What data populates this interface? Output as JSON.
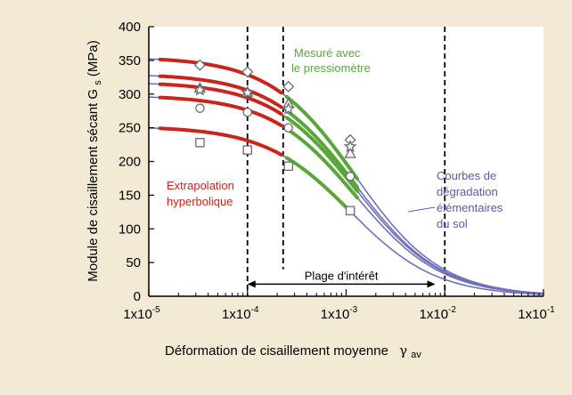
{
  "chart_data": {
    "type": "line",
    "x_scale": "log",
    "xlim": [
      1e-05,
      0.1
    ],
    "ylim": [
      0,
      400
    ],
    "xlabel": "Déformation de cisaillement moyenne",
    "xlabel_symbol": "γ",
    "xlabel_symbol_sub": "av",
    "ylabel_prefix": "Module de cisaillement sécant G",
    "ylabel_sub": "s",
    "ylabel_suffix": "(MPa)",
    "x_ticks": [
      {
        "value": 1e-05,
        "base": "1x10",
        "exp": "-5"
      },
      {
        "value": 0.0001,
        "base": "1x10",
        "exp": "-4"
      },
      {
        "value": 0.001,
        "base": "1x10",
        "exp": "-3"
      },
      {
        "value": 0.01,
        "base": "1x10",
        "exp": "-2"
      },
      {
        "value": 0.1,
        "base": "1x10",
        "exp": "-1"
      }
    ],
    "y_ticks": [
      0,
      50,
      100,
      150,
      200,
      250,
      300,
      350,
      400
    ],
    "vertical_dashed_lines": [
      0.0001,
      0.00023,
      0.01
    ],
    "range_arrow": {
      "from": 0.0001,
      "to": 0.008,
      "y": 18,
      "label": "Plage d'intérêt"
    },
    "annotations": {
      "measured": [
        "Mesuré avec",
        "le pressiomètre"
      ],
      "extrapolation": [
        "Extrapolation",
        "hyperbolique"
      ],
      "degradation": [
        "Courbes de",
        "dégradation",
        "élémentaires",
        "du sol"
      ]
    },
    "colors": {
      "background": "#f3ead6",
      "plot_background": "#ffffff",
      "blue_curve": "#6f70b8",
      "red_extrapolation": "#c8251c",
      "green_measured": "#5aa63a",
      "marker_stroke": "#6a6a6a",
      "axis": "#000000",
      "text": "#000000"
    },
    "series": [
      {
        "g0": 355,
        "gammaRef": 0.00125,
        "marker": "diamond",
        "points": [
          [
            3.3e-05,
            343
          ],
          [
            0.0001,
            333
          ],
          [
            0.00026,
            311
          ],
          [
            0.0011,
            232
          ]
        ],
        "red": [
          1.3e-05,
          0.00022
        ],
        "green": [
          0.00025,
          0.0013
        ]
      },
      {
        "g0": 330,
        "gammaRef": 0.00125,
        "marker": "triangle",
        "points": [
          [
            3.3e-05,
            309
          ],
          [
            0.0001,
            303
          ],
          [
            0.00026,
            286
          ],
          [
            0.0011,
            212
          ]
        ],
        "red": [
          1.3e-05,
          0.00022
        ],
        "green": [
          0.00025,
          0.0013
        ]
      },
      {
        "g0": 318,
        "gammaRef": 0.00125,
        "marker": "star",
        "points": [
          [
            3.3e-05,
            306
          ],
          [
            0.0001,
            302
          ],
          [
            0.00026,
            278
          ],
          [
            0.0011,
            222
          ]
        ],
        "red": [
          1.3e-05,
          0.00022
        ],
        "green": [
          0.00025,
          0.0013
        ]
      },
      {
        "g0": 298,
        "gammaRef": 0.00125,
        "marker": "circle",
        "points": [
          [
            3.3e-05,
            279
          ],
          [
            0.0001,
            273
          ],
          [
            0.00026,
            250
          ],
          [
            0.0011,
            178
          ]
        ],
        "red": [
          1.3e-05,
          0.00022
        ],
        "green": [
          0.00025,
          0.0013
        ]
      },
      {
        "g0": 252,
        "gammaRef": 0.0011,
        "marker": "square",
        "points": [
          [
            3.3e-05,
            228
          ],
          [
            0.0001,
            217
          ],
          [
            0.00026,
            193
          ],
          [
            0.0011,
            127
          ]
        ],
        "red": [
          1.3e-05,
          0.00022
        ],
        "green": [
          0.00025,
          0.0011
        ]
      }
    ]
  }
}
